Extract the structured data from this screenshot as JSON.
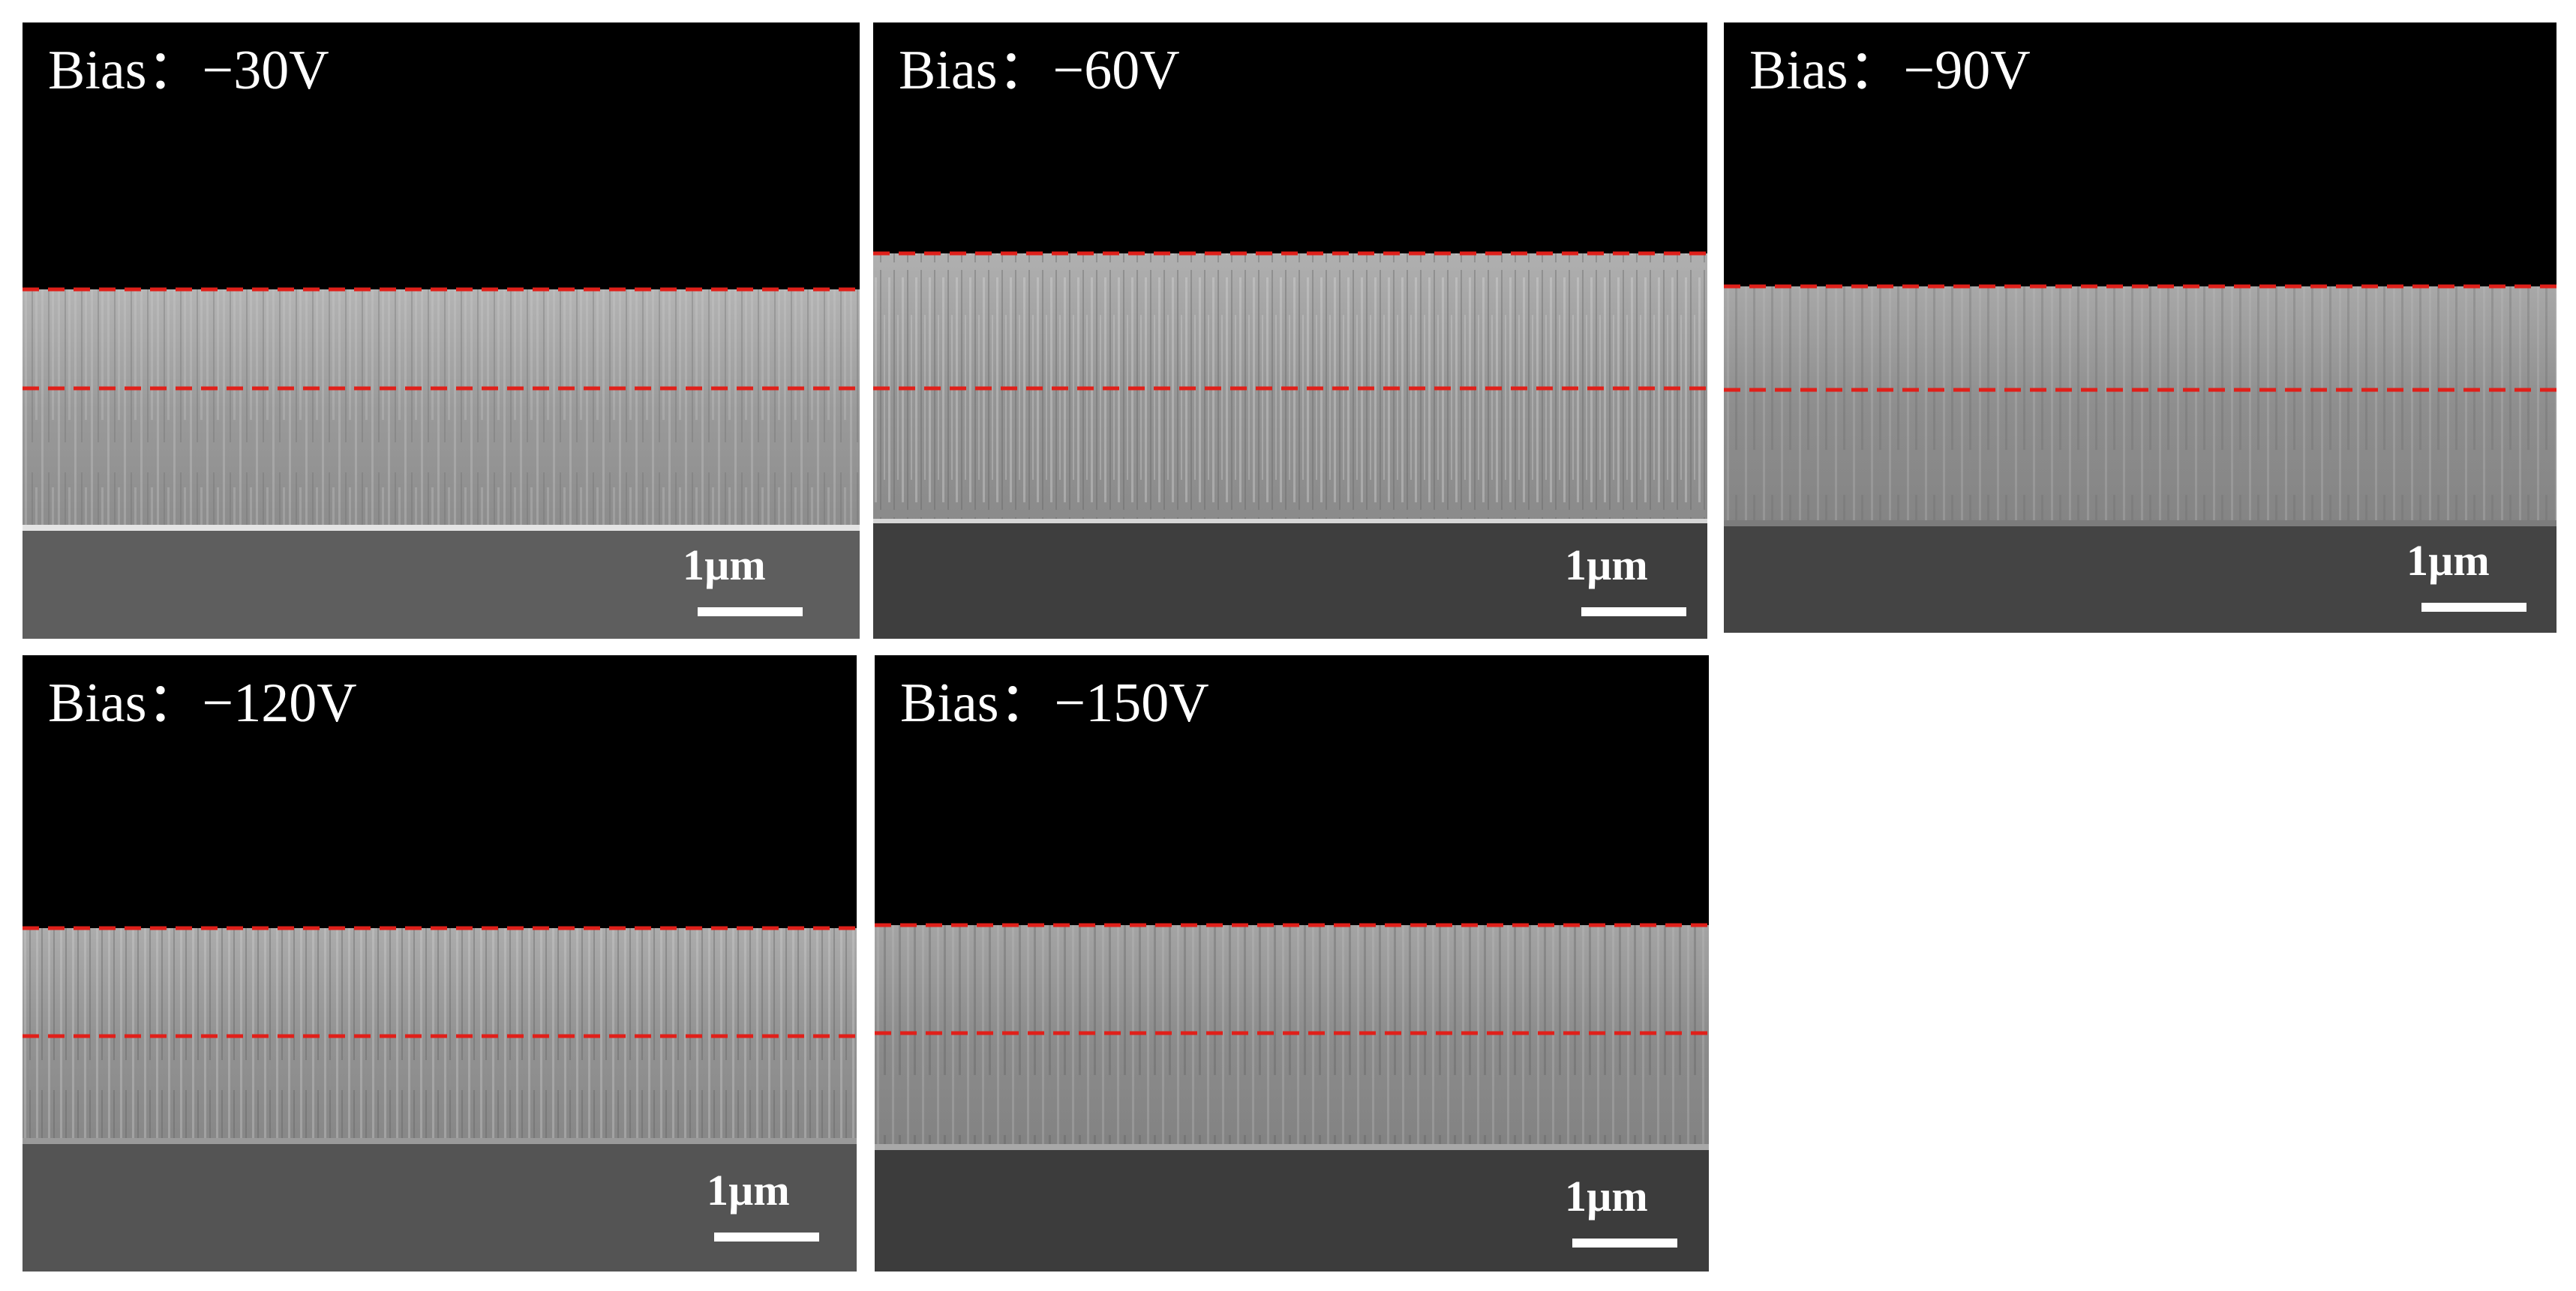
{
  "figure": {
    "panels": [
      {
        "id": "p1",
        "title": "Bias：−30V",
        "scale_label": "1µm"
      },
      {
        "id": "p2",
        "title": "Bias：−60V",
        "scale_label": "1µm"
      },
      {
        "id": "p3",
        "title": "Bias：−90V",
        "scale_label": "1µm"
      },
      {
        "id": "p4",
        "title": "Bias：−120V",
        "scale_label": "1µm"
      },
      {
        "id": "p5",
        "title": "Bias：−150V",
        "scale_label": "1µm"
      }
    ],
    "colors": {
      "vacuum": "#000000",
      "film": "#9c9c9c",
      "substrate": "#585858",
      "marker_line": "#e0201a",
      "text": "#ffffff"
    }
  }
}
